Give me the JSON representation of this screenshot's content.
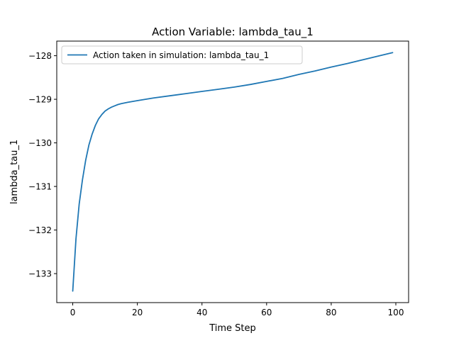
{
  "chart_data": {
    "type": "line",
    "title": "Action Variable: lambda_tau_1",
    "xlabel": "Time Step",
    "ylabel": "lambda_tau_1",
    "xlim": [
      -4.95,
      103.95
    ],
    "ylim": [
      -133.665,
      -127.665
    ],
    "xticks": [
      0,
      20,
      40,
      60,
      80,
      100
    ],
    "yticks": [
      -133,
      -132,
      -131,
      -130,
      -129,
      -128
    ],
    "xtick_labels": [
      "0",
      "20",
      "40",
      "60",
      "80",
      "100"
    ],
    "ytick_labels": [
      "−133",
      "−132",
      "−131",
      "−130",
      "−129",
      "−128"
    ],
    "grid": false,
    "legend": {
      "location": "upper-left",
      "entries": [
        "Action taken in simulation: lambda_tau_1"
      ]
    },
    "series": [
      {
        "name": "Action taken in simulation: lambda_tau_1",
        "color": "#1f77b4",
        "x": [
          0,
          1,
          2,
          3,
          4,
          5,
          6,
          7,
          8,
          9,
          10,
          11,
          12,
          13,
          14,
          15,
          17,
          20,
          25,
          30,
          35,
          40,
          45,
          50,
          55,
          60,
          65,
          70,
          75,
          80,
          85,
          90,
          95,
          99
        ],
        "y": [
          -133.4,
          -132.2,
          -131.4,
          -130.85,
          -130.4,
          -130.05,
          -129.8,
          -129.6,
          -129.45,
          -129.35,
          -129.27,
          -129.22,
          -129.18,
          -129.15,
          -129.12,
          -129.1,
          -129.07,
          -129.03,
          -128.97,
          -128.92,
          -128.87,
          -128.82,
          -128.77,
          -128.72,
          -128.66,
          -128.59,
          -128.52,
          -128.43,
          -128.35,
          -128.26,
          -128.18,
          -128.09,
          -128.0,
          -127.93
        ]
      }
    ]
  }
}
